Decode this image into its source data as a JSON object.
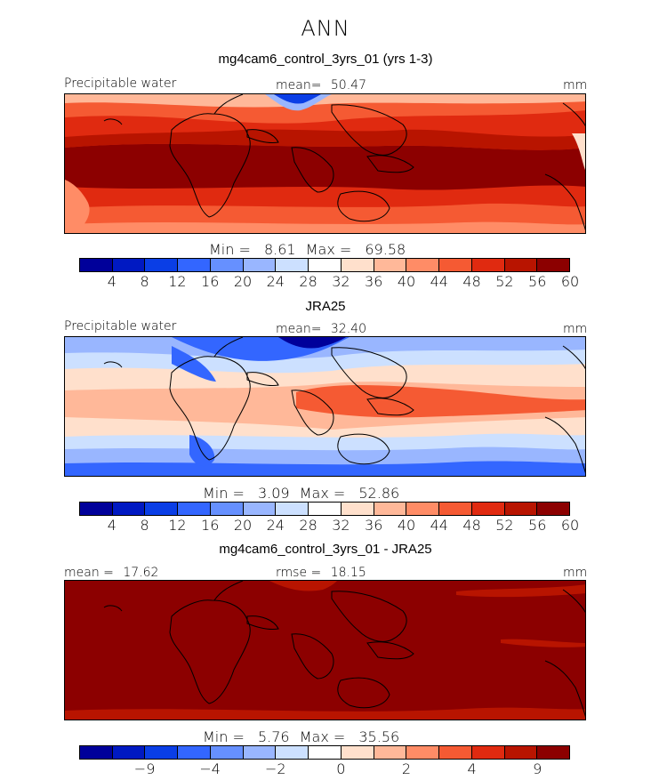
{
  "header": {
    "title": "ANN"
  },
  "panels": [
    {
      "title": "mg4cam6_control_3yrs_01 (yrs 1-3)",
      "left_label": "Precipitable water",
      "center_label": "mean=",
      "center_value": "50.47",
      "units": "mm",
      "min_label": "Min =",
      "min_value": "8.61",
      "max_label": "Max =",
      "max_value": "69.58",
      "colorbar_ticks": [
        "4",
        "8",
        "12",
        "16",
        "20",
        "24",
        "28",
        "32",
        "36",
        "40",
        "44",
        "48",
        "52",
        "56",
        "60"
      ]
    },
    {
      "title": "JRA25",
      "left_label": "Precipitable water",
      "center_label": "mean=",
      "center_value": "32.40",
      "units": "mm",
      "min_label": "Min =",
      "min_value": "3.09",
      "max_label": "Max =",
      "max_value": "52.86",
      "colorbar_ticks": [
        "4",
        "8",
        "12",
        "16",
        "20",
        "24",
        "28",
        "32",
        "36",
        "40",
        "44",
        "48",
        "52",
        "56",
        "60"
      ]
    },
    {
      "title": "mg4cam6_control_3yrs_01 - JRA25",
      "left_label": "mean =",
      "left_value": "17.62",
      "center_label": "rmse =",
      "center_value": "18.15",
      "units": "mm",
      "min_label": "Min =",
      "min_value": "5.76",
      "max_label": "Max =",
      "max_value": "35.56",
      "colorbar_ticks": [
        "−9",
        "−4",
        "−2",
        "0",
        "2",
        "4",
        "9"
      ]
    }
  ],
  "colors": {
    "scale": [
      "#00009a",
      "#0019c2",
      "#0a3ee6",
      "#3366ff",
      "#6690ff",
      "#99b6ff",
      "#cce0ff",
      "#ffffff",
      "#ffe0cc",
      "#ffb899",
      "#ff8c66",
      "#f55a33",
      "#e02a10",
      "#b81400",
      "#8c0000"
    ]
  },
  "chart_data": [
    {
      "type": "heatmap",
      "title": "mg4cam6_control_3yrs_01 (yrs 1-3)",
      "variable": "Precipitable water",
      "units": "mm",
      "mean": 50.47,
      "min": 8.61,
      "max": 69.58,
      "colorbar_levels": [
        4,
        8,
        12,
        16,
        20,
        24,
        28,
        32,
        36,
        40,
        44,
        48,
        52,
        56,
        60
      ]
    },
    {
      "type": "heatmap",
      "title": "JRA25",
      "variable": "Precipitable water",
      "units": "mm",
      "mean": 32.4,
      "min": 3.09,
      "max": 52.86,
      "colorbar_levels": [
        4,
        8,
        12,
        16,
        20,
        24,
        28,
        32,
        36,
        40,
        44,
        48,
        52,
        56,
        60
      ]
    },
    {
      "type": "heatmap",
      "title": "mg4cam6_control_3yrs_01 - JRA25",
      "units": "mm",
      "mean": 17.62,
      "rmse": 18.15,
      "min": 5.76,
      "max": 35.56,
      "colorbar_levels": [
        -9,
        -4,
        -2,
        0,
        2,
        4,
        9
      ]
    }
  ]
}
